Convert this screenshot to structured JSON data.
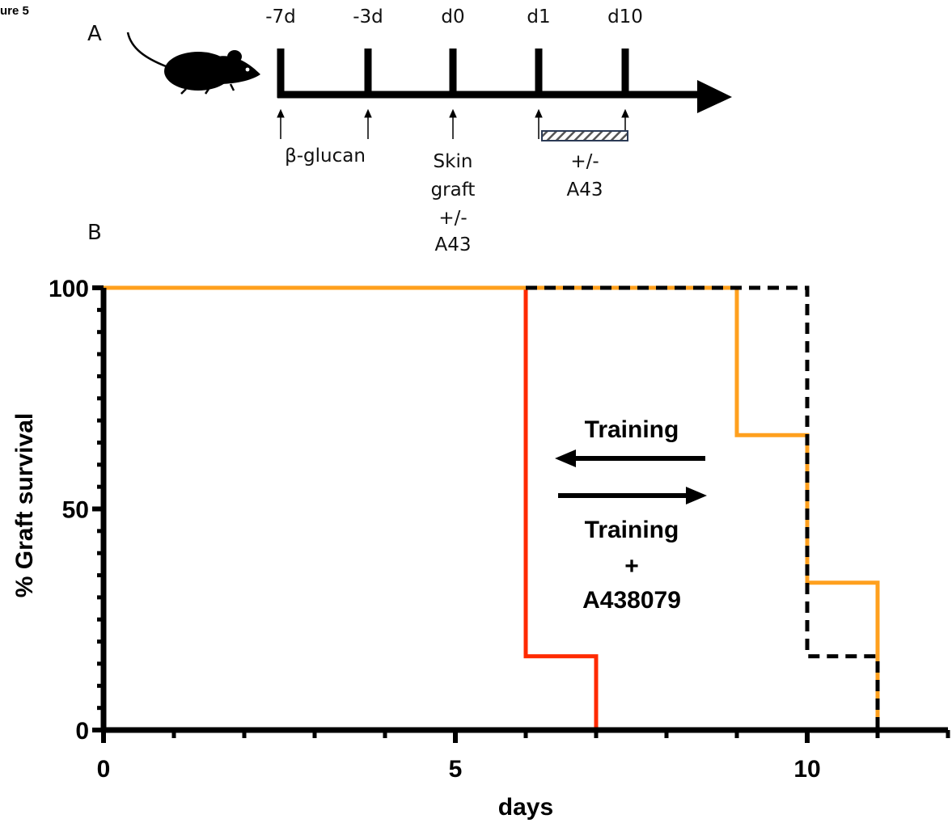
{
  "figure_label": "ure 5",
  "panel_a": {
    "label": "A",
    "timepoints": [
      "-7d",
      "-3d",
      "d0",
      "d1",
      "d10"
    ],
    "labels": {
      "beta_glucan": "β-glucan",
      "skin_graft": [
        "Skin",
        "graft",
        "+/-",
        "A43"
      ],
      "a43_treatment": [
        "+/-",
        "A43"
      ]
    }
  },
  "chart_data": {
    "panel_label": "B",
    "type": "line",
    "xlabel": "days",
    "ylabel": "% Graft survival",
    "xlim": [
      0,
      12
    ],
    "ylim": [
      0,
      100
    ],
    "xticks": [
      0,
      5,
      10
    ],
    "yticks": [
      0,
      50,
      100
    ],
    "grid": false,
    "series": [
      {
        "color": "#ff2a00",
        "dash": "solid",
        "x": [
          0,
          6,
          6,
          7,
          7
        ],
        "y": [
          100,
          100,
          16.7,
          16.7,
          0
        ]
      },
      {
        "color": "#ffa01e",
        "dash": "solid",
        "x": [
          0,
          9,
          9,
          10,
          10,
          11,
          11
        ],
        "y": [
          100,
          100,
          66.7,
          66.7,
          33.3,
          33.3,
          0
        ]
      },
      {
        "color": "#000000",
        "dash": "dashed",
        "x": [
          6,
          10,
          10,
          11,
          11
        ],
        "y": [
          100,
          100,
          16.7,
          16.7,
          0
        ]
      }
    ],
    "annotations": {
      "top": "Training",
      "bottom": [
        "Training",
        "+",
        "A438079"
      ]
    }
  }
}
